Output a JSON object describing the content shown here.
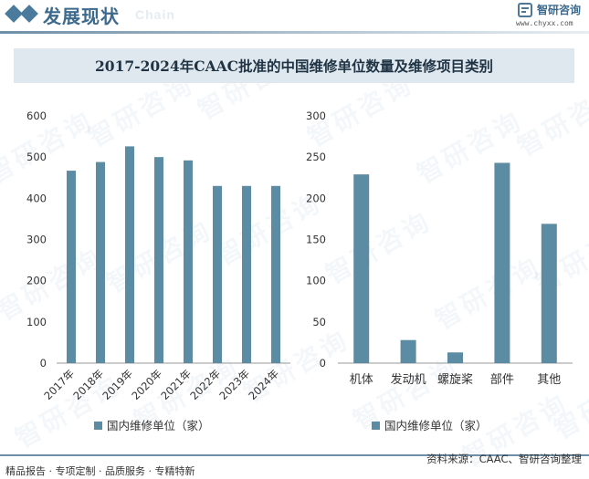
{
  "header": {
    "section_title": "发展现状",
    "section_subtitle": "Chain",
    "brand_name": "智研咨询",
    "brand_url": "www.chyxx.com"
  },
  "title": "2017-2024年CAAC批准的中国维修单位数量及维修项目类别",
  "watermark_text": "智研咨询",
  "chart_data": [
    {
      "type": "bar",
      "categories": [
        "2017年",
        "2018年",
        "2019年",
        "2020年",
        "2021年",
        "2022年",
        "2023年",
        "2024年"
      ],
      "series": [
        {
          "name": "国内维修单位（家）",
          "values": [
            467,
            488,
            526,
            500,
            492,
            430,
            430,
            430
          ]
        }
      ],
      "ylim": [
        0,
        600
      ],
      "yticks": [
        0,
        100,
        200,
        300,
        400,
        500,
        600
      ],
      "bar_color": "#5b8ca4",
      "legend_position": "bottom"
    },
    {
      "type": "bar",
      "categories": [
        "机体",
        "发动机",
        "螺旋桨",
        "部件",
        "其他"
      ],
      "series": [
        {
          "name": "国内维修单位（家）",
          "values": [
            229,
            28,
            13,
            243,
            169
          ]
        }
      ],
      "ylim": [
        0,
        300
      ],
      "yticks": [
        0,
        50,
        100,
        150,
        200,
        250,
        300
      ],
      "bar_color": "#5b8ca4",
      "legend_position": "bottom"
    }
  ],
  "footer": {
    "tags": "精品报告 · 专项定制 · 品质服务 · 专精特新",
    "source": "资料来源：CAAC、智研咨询整理"
  }
}
